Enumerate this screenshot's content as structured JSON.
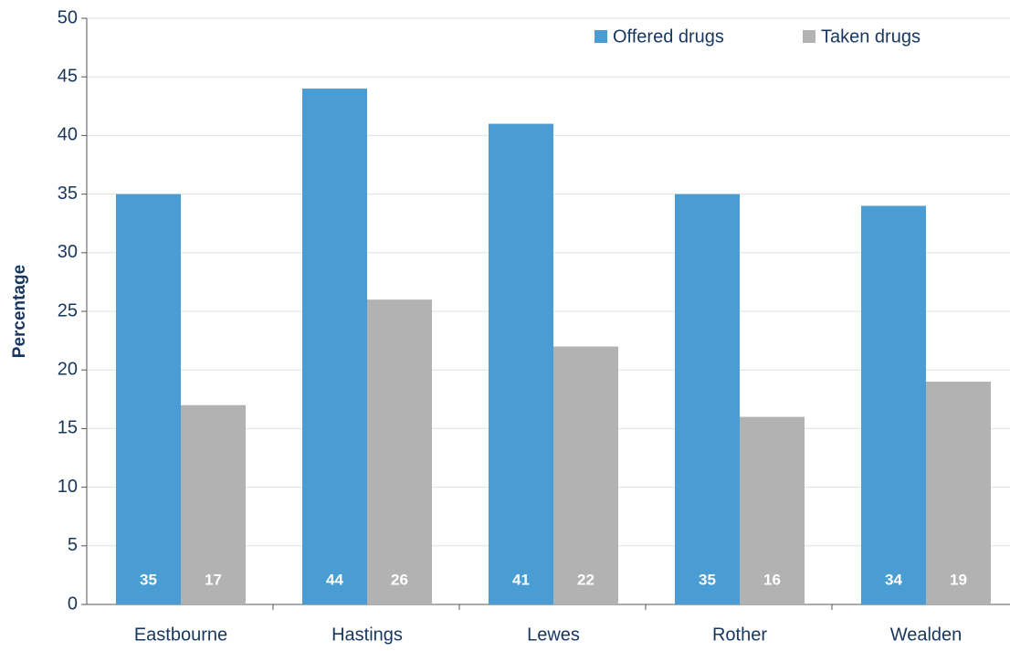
{
  "chart_data": {
    "type": "bar",
    "y_label": "Percentage",
    "categories": [
      "Eastbourne",
      "Hastings",
      "Lewes",
      "Rother",
      "Wealden"
    ],
    "series": [
      {
        "name": "Offered drugs",
        "color": "#4a9dd3",
        "values": [
          35,
          44,
          41,
          35,
          34
        ]
      },
      {
        "name": "Taken drugs",
        "color": "#b2b2b2",
        "values": [
          17,
          26,
          22,
          16,
          19
        ]
      }
    ],
    "ylim": [
      0,
      50
    ],
    "yticks": [
      0,
      5,
      10,
      15,
      20,
      25,
      30,
      35,
      40,
      45,
      50
    ],
    "grid": true,
    "legend": "top-right"
  }
}
